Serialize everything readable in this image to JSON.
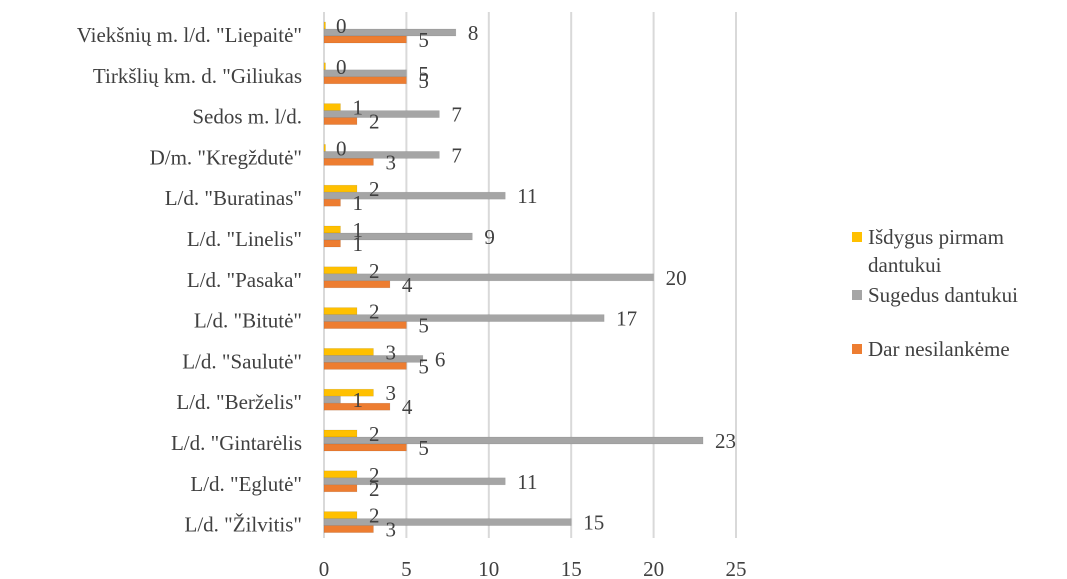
{
  "chart_data": {
    "type": "bar",
    "orientation": "horizontal",
    "categories": [
      "Viekšnių m. l/d. \"Liepaitė\"",
      "Tirkšlių km. d. \"Giliukas",
      "Sedos m. l/d.",
      "D/m. \"Kregždutė\"",
      "L/d. \"Buratinas\"",
      "L/d. \"Linelis\"",
      "L/d. \"Pasaka\"",
      "L/d. \"Bitutė\"",
      "L/d. \"Saulutė\"",
      "L/d. \"Berželis\"",
      "L/d. \"Gintarėlis",
      "L/d. \"Eglutė\"",
      "L/d. \"Žilvitis\""
    ],
    "series": [
      {
        "name": "Išdygus pirmam dantukui",
        "color": "#ffc000",
        "values": [
          0,
          0,
          1,
          0,
          2,
          1,
          2,
          2,
          3,
          3,
          2,
          2,
          2
        ]
      },
      {
        "name": "Sugedus dantukui",
        "color": "#a5a5a5",
        "values": [
          8,
          5,
          7,
          7,
          11,
          9,
          20,
          17,
          6,
          1,
          23,
          11,
          15
        ]
      },
      {
        "name": "Dar nesilankėme",
        "color": "#ed7d31",
        "values": [
          5,
          5,
          2,
          3,
          1,
          1,
          4,
          5,
          5,
          4,
          5,
          2,
          3
        ]
      }
    ],
    "xlim": [
      0,
      25
    ],
    "xticks": [
      "0",
      "5",
      "10",
      "15",
      "20",
      "25"
    ],
    "legend_lines": [
      [
        "Išdygus pirmam",
        "dantukui"
      ],
      [
        "Sugedus dantukui"
      ],
      [
        "Dar nesilankėme"
      ]
    ],
    "grid": true,
    "legend_position": "right"
  }
}
